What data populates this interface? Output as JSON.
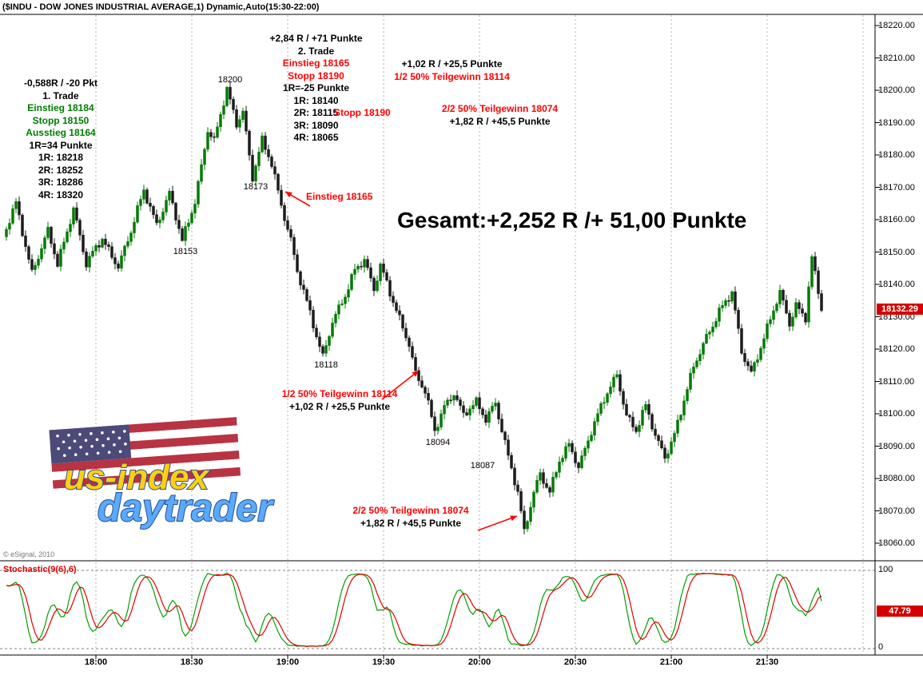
{
  "window_title": "($INDU - DOW JONES INDUSTRIAL AVERAGE,1) Dynamic,Auto(15:30-22:00)",
  "copyright": "© eSignal, 2010",
  "watermark": {
    "line1": "us-index",
    "line2": "daytrader"
  },
  "price_axis": {
    "labels": [
      "18220.00",
      "18210.00",
      "18200.00",
      "18190.00",
      "18180.00",
      "18170.00",
      "18160.00",
      "18150.00",
      "18140.00",
      "18130.00",
      "18120.00",
      "18110.00",
      "18100.00",
      "18090.00",
      "18080.00",
      "18070.00",
      "18060.00"
    ],
    "current_price_badge": "18132.29"
  },
  "time_axis": {
    "labels": [
      "18:00",
      "18:30",
      "19:00",
      "19:30",
      "20:00",
      "20:30",
      "21:00",
      "21:30"
    ]
  },
  "stochastic_panel": {
    "label": "Stochastic(9(6),6)",
    "axis_max": "100",
    "axis_min": "0",
    "current_value_badge": "47.79"
  },
  "annotations": {
    "trade1": {
      "lines": [
        {
          "text": "-0,588R / -20 Pkt",
          "color": "black"
        },
        {
          "text": "1. Trade",
          "color": "black"
        },
        {
          "text": "Einstieg 18184",
          "color": "green"
        },
        {
          "text": "Stopp 18150",
          "color": "green"
        },
        {
          "text": "Ausstieg 18164",
          "color": "green"
        },
        {
          "text": "1R=34 Punkte",
          "color": "black"
        },
        {
          "text": "1R: 18218",
          "color": "black"
        },
        {
          "text": "2R: 18252",
          "color": "black"
        },
        {
          "text": "3R: 18286",
          "color": "black"
        },
        {
          "text": "4R: 18320",
          "color": "black"
        }
      ]
    },
    "trade2": {
      "lines": [
        {
          "text": "+2,84 R / +71 Punkte",
          "color": "black"
        },
        {
          "text": "2. Trade",
          "color": "black"
        },
        {
          "text": "Einstieg 18165",
          "color": "red"
        },
        {
          "text": "Stopp 18190",
          "color": "red"
        },
        {
          "text": "1R=-25 Punkte",
          "color": "black"
        },
        {
          "text": "1R: 18140",
          "color": "black"
        },
        {
          "text": "2R: 18115",
          "color": "black"
        },
        {
          "text": "3R: 18090",
          "color": "black"
        },
        {
          "text": "4R: 18065",
          "color": "black"
        }
      ]
    },
    "profit1_top": {
      "lines": [
        {
          "text": "+1,02 R / +25,5 Punkte",
          "color": "black"
        },
        {
          "text": "1/2 50% Teilgewinn 18114",
          "color": "red"
        }
      ]
    },
    "stopp_mid": {
      "text": "Stopp 18190"
    },
    "profit2_top": {
      "lines": [
        {
          "text": "2/2 50% Teilgewinn 18074",
          "color": "red"
        },
        {
          "text": "+1,82 R / +45,5 Punkte",
          "color": "black"
        }
      ]
    },
    "gesamt": {
      "text": "Gesamt:+2,252 R /+ 51,00 Punkte"
    },
    "einstieg_mid": {
      "text": "Einstieg 18165"
    },
    "teilgewinn1": {
      "lines": [
        {
          "text": "1/2 50% Teilgewinn 18114",
          "color": "red"
        },
        {
          "text": "+1,02 R / +25,5 Punkte",
          "color": "black"
        }
      ]
    },
    "teilgewinn2": {
      "lines": [
        {
          "text": "2/2 50% Teilgewinn 18074",
          "color": "red"
        },
        {
          "text": "+1,82 R / +45,5 Punkte",
          "color": "black"
        }
      ]
    }
  },
  "price_point_labels": [
    {
      "text": "18200",
      "t": 72,
      "price": 18200,
      "pos": "above"
    },
    {
      "text": "18173",
      "t": 80,
      "price": 18173,
      "pos": "below"
    },
    {
      "text": "18153",
      "t": 58,
      "price": 18153,
      "pos": "below"
    },
    {
      "text": "18118",
      "t": 102,
      "price": 18118,
      "pos": "below"
    },
    {
      "text": "18094",
      "t": 137,
      "price": 18094,
      "pos": "below"
    },
    {
      "text": "18087",
      "t": 151,
      "price": 18087,
      "pos": "below"
    }
  ],
  "colors": {
    "up": "#067a06",
    "down": "#1c1c1c",
    "annotation_red": "#ff0000",
    "annotation_green": "#007c00",
    "badge_bg": "#d40000",
    "stoch_k": "#00a000",
    "stoch_d": "#e00000",
    "grid": "#b0b0b0"
  },
  "chart_data": {
    "type": "candlestick",
    "symbol": "$INDU",
    "name": "DOW JONES INDUSTRIAL AVERAGE",
    "interval": "1-minute",
    "session": "15:30-22:00",
    "ylim": [
      18055,
      18223.5
    ],
    "y_tick_step": 10,
    "x_time_base": "17:30",
    "visible_t_range": [
      2,
      258
    ],
    "last_price": 18132.29,
    "price_path_t_price": [
      [
        2,
        18154
      ],
      [
        6,
        18165
      ],
      [
        11,
        18144
      ],
      [
        16,
        18156
      ],
      [
        19,
        18146
      ],
      [
        24,
        18164
      ],
      [
        28,
        18146
      ],
      [
        33,
        18154
      ],
      [
        38,
        18146
      ],
      [
        42,
        18156
      ],
      [
        46,
        18169
      ],
      [
        50,
        18159
      ],
      [
        54,
        18168
      ],
      [
        58,
        18153
      ],
      [
        62,
        18166
      ],
      [
        66,
        18188
      ],
      [
        68,
        18184
      ],
      [
        72,
        18200
      ],
      [
        75,
        18190
      ],
      [
        77,
        18194
      ],
      [
        80,
        18173
      ],
      [
        83,
        18184
      ],
      [
        86,
        18177
      ],
      [
        89,
        18165
      ],
      [
        92,
        18154
      ],
      [
        94,
        18144
      ],
      [
        97,
        18134
      ],
      [
        100,
        18124
      ],
      [
        102,
        18118
      ],
      [
        105,
        18129
      ],
      [
        109,
        18136
      ],
      [
        112,
        18144
      ],
      [
        115,
        18148
      ],
      [
        118,
        18139
      ],
      [
        120,
        18146
      ],
      [
        124,
        18134
      ],
      [
        126,
        18129
      ],
      [
        129,
        18122
      ],
      [
        131,
        18113
      ],
      [
        134,
        18107
      ],
      [
        137,
        18094
      ],
      [
        140,
        18102
      ],
      [
        143,
        18107
      ],
      [
        146,
        18100
      ],
      [
        150,
        18103
      ],
      [
        153,
        18098
      ],
      [
        156,
        18104
      ],
      [
        160,
        18087
      ],
      [
        163,
        18075
      ],
      [
        165,
        18063
      ],
      [
        168,
        18076
      ],
      [
        170,
        18082
      ],
      [
        173,
        18076
      ],
      [
        176,
        18085
      ],
      [
        179,
        18090
      ],
      [
        182,
        18084
      ],
      [
        186,
        18095
      ],
      [
        190,
        18104
      ],
      [
        194,
        18112
      ],
      [
        197,
        18100
      ],
      [
        200,
        18095
      ],
      [
        203,
        18102
      ],
      [
        206,
        18093
      ],
      [
        209,
        18087
      ],
      [
        212,
        18094
      ],
      [
        215,
        18104
      ],
      [
        218,
        18114
      ],
      [
        222,
        18124
      ],
      [
        226,
        18132
      ],
      [
        230,
        18137
      ],
      [
        233,
        18119
      ],
      [
        236,
        18113
      ],
      [
        239,
        18121
      ],
      [
        242,
        18129
      ],
      [
        245,
        18137
      ],
      [
        248,
        18128
      ],
      [
        250,
        18134
      ],
      [
        253,
        18130
      ],
      [
        255,
        18148
      ],
      [
        258,
        18132
      ]
    ],
    "stochastic": {
      "params": "9(6),6",
      "last_value": 47.79,
      "range": [
        0,
        100
      ]
    }
  }
}
